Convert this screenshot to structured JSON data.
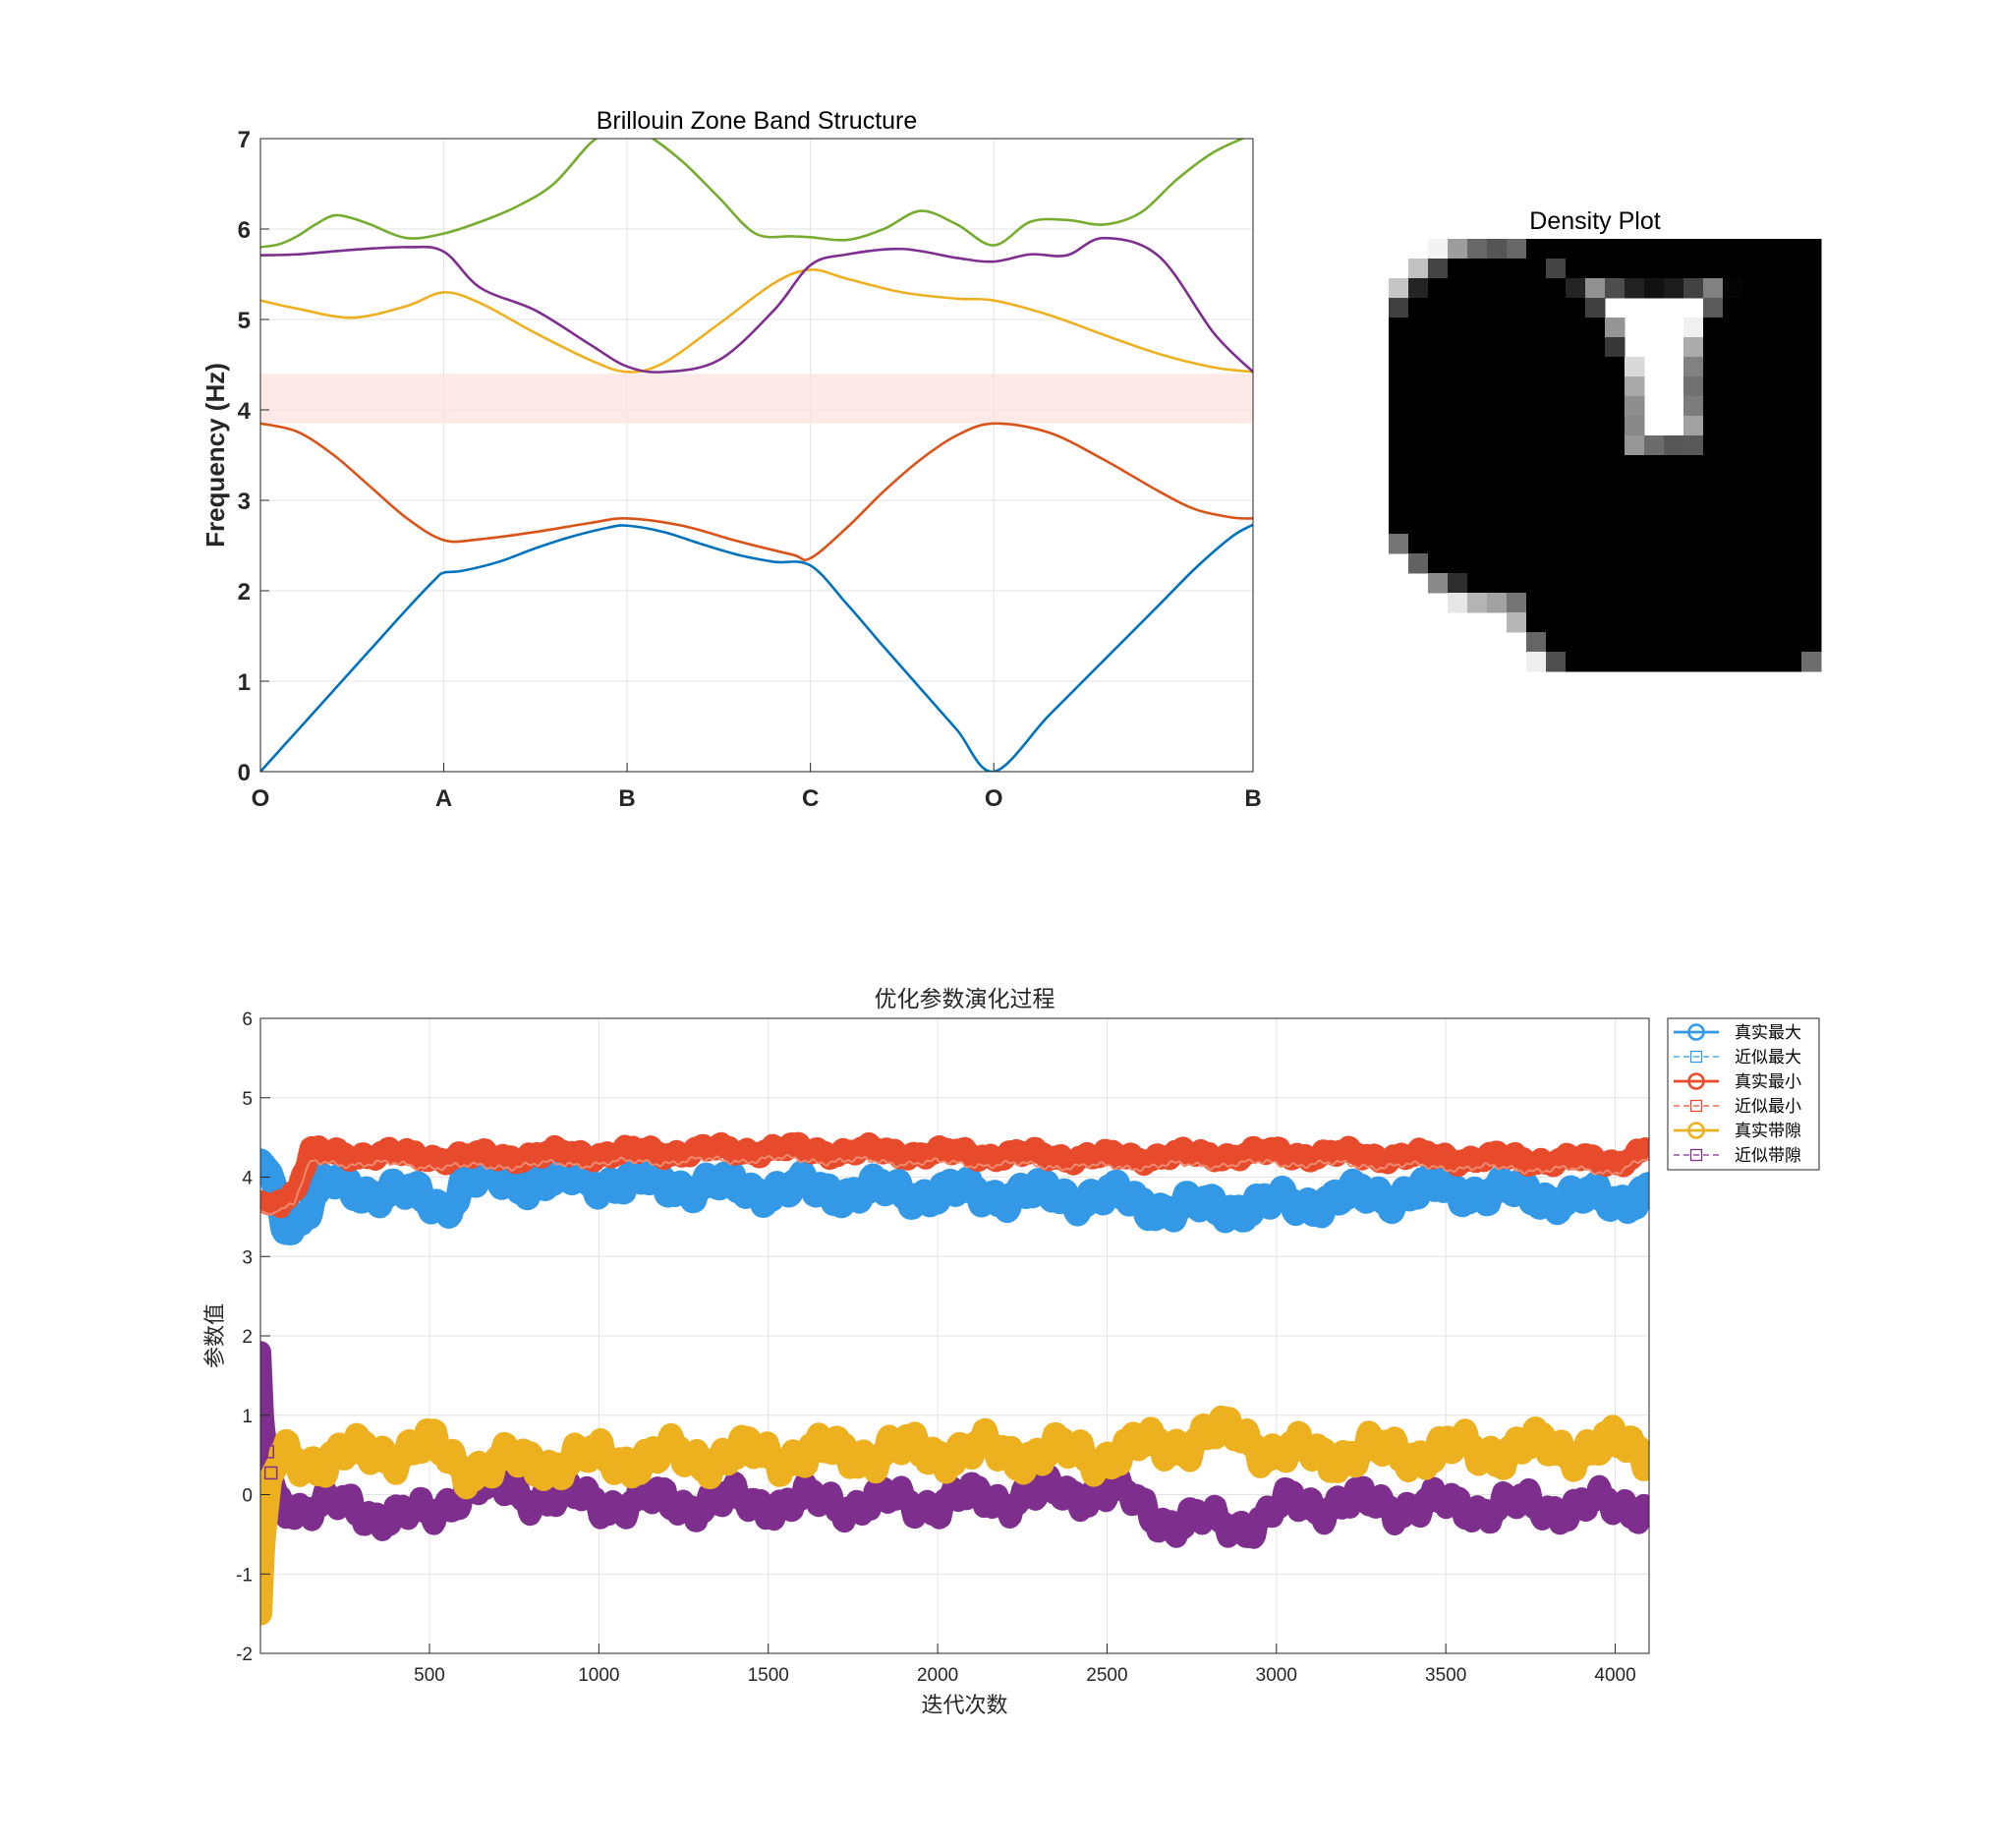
{
  "chart_data": [
    {
      "type": "line",
      "title": "Brillouin Zone Band Structure",
      "xlabel": "",
      "ylabel": "Frequency (Hz)",
      "ylim": [
        0,
        7
      ],
      "yticks": [
        0,
        1,
        2,
        3,
        4,
        5,
        6,
        7
      ],
      "x_tick_labels": [
        "O",
        "A",
        "B",
        "C",
        "O",
        "B"
      ],
      "xlim": [
        0,
        5.414
      ],
      "x_tick_positions": [
        0,
        1,
        2,
        3,
        4,
        5.414
      ],
      "grid": true,
      "band_gap": {
        "from": 3.85,
        "to": 4.4,
        "color": "#fde2e2"
      },
      "series": [
        {
          "color": "#0072bd",
          "x": [
            0,
            0.2,
            0.4,
            0.6,
            0.8,
            0.95,
            1.0,
            1.1,
            1.3,
            1.5,
            1.7,
            1.9,
            2.0,
            2.2,
            2.4,
            2.6,
            2.8,
            3.0,
            3.2,
            3.4,
            3.6,
            3.8,
            4.0,
            4.3,
            4.6,
            4.9,
            5.1,
            5.3,
            5.414
          ],
          "y": [
            0,
            0.45,
            0.9,
            1.35,
            1.8,
            2.12,
            2.2,
            2.22,
            2.32,
            2.47,
            2.6,
            2.7,
            2.72,
            2.65,
            2.52,
            2.4,
            2.32,
            2.28,
            1.85,
            1.38,
            0.92,
            0.46,
            0,
            0.62,
            1.23,
            1.84,
            2.25,
            2.6,
            2.73
          ]
        },
        {
          "color": "#d95319",
          "x": [
            0,
            0.2,
            0.4,
            0.6,
            0.8,
            1.0,
            1.2,
            1.5,
            1.8,
            2.0,
            2.3,
            2.6,
            2.9,
            3.0,
            3.2,
            3.4,
            3.6,
            3.8,
            4.0,
            4.3,
            4.6,
            4.9,
            5.1,
            5.3,
            5.414
          ],
          "y": [
            3.85,
            3.76,
            3.5,
            3.15,
            2.8,
            2.56,
            2.57,
            2.65,
            2.75,
            2.8,
            2.72,
            2.55,
            2.4,
            2.36,
            2.7,
            3.1,
            3.45,
            3.72,
            3.85,
            3.75,
            3.45,
            3.1,
            2.9,
            2.81,
            2.8
          ]
        },
        {
          "color": "#edb120",
          "x": [
            0,
            0.2,
            0.5,
            0.8,
            1.0,
            1.2,
            1.5,
            1.8,
            2.0,
            2.2,
            2.5,
            2.8,
            3.0,
            3.2,
            3.5,
            3.8,
            4.0,
            4.3,
            4.6,
            4.9,
            5.2,
            5.414
          ],
          "y": [
            5.21,
            5.12,
            5.02,
            5.15,
            5.3,
            5.18,
            4.85,
            4.55,
            4.42,
            4.52,
            4.95,
            5.4,
            5.55,
            5.45,
            5.3,
            5.23,
            5.21,
            5.05,
            4.83,
            4.62,
            4.47,
            4.42
          ]
        },
        {
          "color": "#7e2f8e",
          "x": [
            0,
            0.2,
            0.5,
            0.8,
            1.0,
            1.2,
            1.5,
            1.8,
            2.0,
            2.2,
            2.5,
            2.8,
            3.0,
            3.2,
            3.5,
            3.8,
            4.0,
            4.2,
            4.4,
            4.6,
            4.9,
            5.2,
            5.414
          ],
          "y": [
            5.71,
            5.72,
            5.77,
            5.8,
            5.75,
            5.35,
            5.1,
            4.72,
            4.48,
            4.42,
            4.55,
            5.1,
            5.6,
            5.72,
            5.78,
            5.68,
            5.64,
            5.72,
            5.71,
            5.9,
            5.7,
            4.85,
            4.42
          ]
        },
        {
          "color": "#77ac30",
          "x": [
            0,
            0.1,
            0.2,
            0.3,
            0.4,
            0.5,
            0.6,
            0.8,
            1.0,
            1.2,
            1.4,
            1.6,
            1.8,
            1.9,
            2.0,
            2.1,
            2.3,
            2.5,
            2.7,
            2.9,
            3.0,
            3.2,
            3.4,
            3.6,
            3.8,
            4.0,
            4.2,
            4.4,
            4.6,
            4.8,
            5.0,
            5.2,
            5.414
          ],
          "y": [
            5.8,
            5.83,
            5.92,
            6.05,
            6.15,
            6.12,
            6.05,
            5.9,
            5.95,
            6.08,
            6.25,
            6.5,
            6.95,
            7.05,
            7.08,
            7.05,
            6.75,
            6.35,
            5.95,
            5.92,
            5.91,
            5.88,
            6.0,
            6.2,
            6.05,
            5.82,
            6.08,
            6.1,
            6.05,
            6.18,
            6.55,
            6.85,
            7.05
          ]
        }
      ]
    },
    {
      "type": "heatmap",
      "title": "Density Plot",
      "colormap": "gray (1 = black, 0 = white)"
    },
    {
      "type": "line",
      "title": "优化参数演化过程",
      "xlabel": "迭代次数",
      "ylabel": "参数值",
      "xlim": [
        1,
        4100
      ],
      "ylim": [
        -2,
        6
      ],
      "xticks": [
        500,
        1000,
        1500,
        2000,
        2500,
        3000,
        3500,
        4000
      ],
      "yticks": [
        -2,
        -1,
        0,
        1,
        2,
        3,
        4,
        5,
        6
      ],
      "grid": true,
      "legend_position": "top-right (outside)",
      "legend": [
        {
          "name": "真实最大",
          "color": "#3399e6",
          "marker": "circle",
          "style": "solid"
        },
        {
          "name": "近似最大",
          "color": "#3399e6",
          "marker": "square",
          "style": "dashed"
        },
        {
          "name": "真实最小",
          "color": "#e84a2c",
          "marker": "circle",
          "style": "solid"
        },
        {
          "name": "近似最小",
          "color": "#e84a2c",
          "marker": "square",
          "style": "dashed"
        },
        {
          "name": "真实带隙",
          "color": "#edb120",
          "marker": "circle",
          "style": "solid"
        },
        {
          "name": "近似带隙",
          "color": "#7e2f8e",
          "marker": "square",
          "style": "dashed"
        }
      ],
      "series_anchors": {
        "max": [
          [
            1,
            4.2
          ],
          [
            30,
            4.05
          ],
          [
            80,
            3.4
          ],
          [
            120,
            3.5
          ],
          [
            200,
            3.9
          ],
          [
            400,
            3.8
          ],
          [
            550,
            3.65
          ],
          [
            600,
            3.95
          ],
          [
            1000,
            3.95
          ],
          [
            1500,
            3.85
          ],
          [
            2000,
            3.8
          ],
          [
            2500,
            3.75
          ],
          [
            2700,
            3.6
          ],
          [
            3000,
            3.65
          ],
          [
            3500,
            3.85
          ],
          [
            4000,
            3.7
          ],
          [
            4100,
            3.85
          ]
        ],
        "min": [
          [
            1,
            3.7
          ],
          [
            30,
            3.65
          ],
          [
            100,
            3.8
          ],
          [
            150,
            4.3
          ],
          [
            250,
            4.3
          ],
          [
            600,
            4.25
          ],
          [
            1000,
            4.3
          ],
          [
            1500,
            4.35
          ],
          [
            2000,
            4.3
          ],
          [
            2500,
            4.25
          ],
          [
            3000,
            4.3
          ],
          [
            3500,
            4.25
          ],
          [
            4000,
            4.2
          ],
          [
            4100,
            4.35
          ]
        ],
        "gap": [
          [
            1,
            -1.5
          ],
          [
            10,
            -0.6
          ],
          [
            30,
            0.2
          ],
          [
            60,
            0.45
          ],
          [
            200,
            0.45
          ],
          [
            500,
            0.6
          ],
          [
            600,
            0.35
          ],
          [
            1000,
            0.45
          ],
          [
            1500,
            0.5
          ],
          [
            2000,
            0.55
          ],
          [
            2500,
            0.5
          ],
          [
            2700,
            0.65
          ],
          [
            2900,
            0.78
          ],
          [
            3000,
            0.5
          ],
          [
            3500,
            0.55
          ],
          [
            4000,
            0.6
          ],
          [
            4100,
            0.55
          ]
        ],
        "gap_approx": [
          [
            1,
            1.8
          ],
          [
            10,
            0.9
          ],
          [
            30,
            0.3
          ],
          [
            60,
            -0.1
          ],
          [
            200,
            -0.15
          ],
          [
            500,
            -0.3
          ],
          [
            600,
            0.1
          ],
          [
            1000,
            -0.1
          ],
          [
            1500,
            -0.1
          ],
          [
            2000,
            -0.1
          ],
          [
            2500,
            0.05
          ],
          [
            2700,
            -0.35
          ],
          [
            2950,
            -0.35
          ],
          [
            3050,
            -0.1
          ],
          [
            3500,
            -0.15
          ],
          [
            4000,
            -0.15
          ],
          [
            4100,
            -0.1
          ]
        ]
      }
    }
  ]
}
